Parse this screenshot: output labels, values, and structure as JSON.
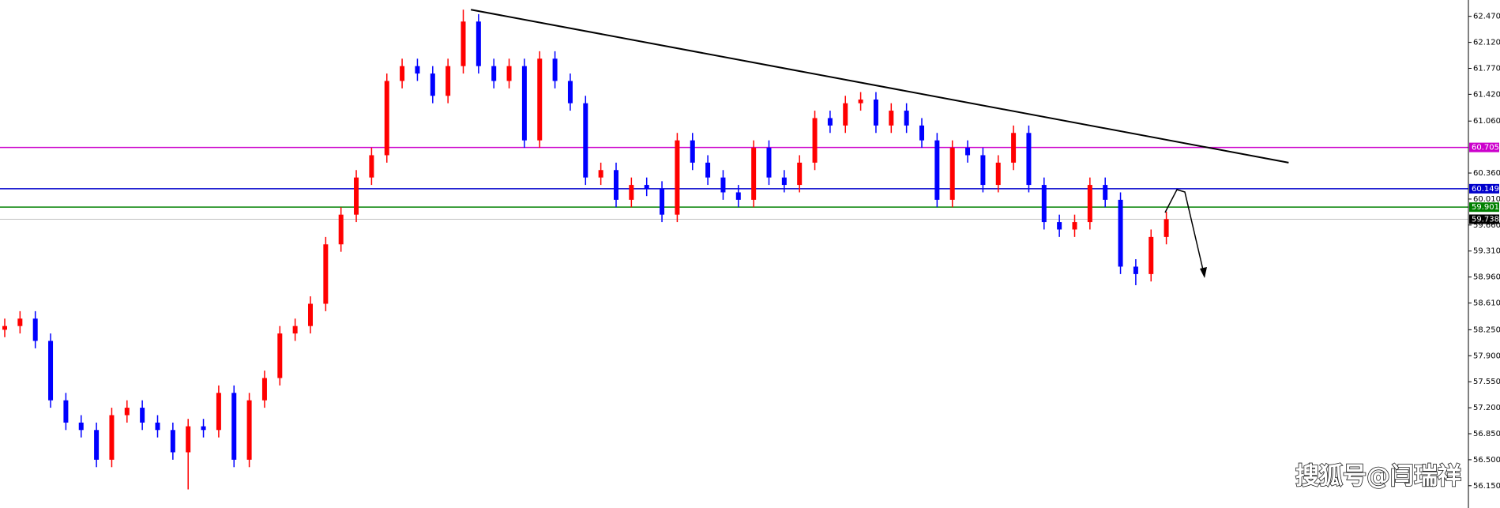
{
  "chart_data": {
    "type": "candlestick",
    "watermark": "搜狐号@闫瑞祥",
    "up_color": "#ff0000",
    "down_color": "#0000ff",
    "open": [
      58.25,
      58.3,
      58.4,
      58.1,
      57.3,
      57.0,
      56.9,
      56.5,
      57.1,
      57.2,
      57.0,
      56.9,
      56.6,
      56.95,
      56.9,
      57.4,
      56.5,
      57.3,
      57.6,
      58.2,
      58.3,
      58.6,
      59.4,
      59.8,
      60.3,
      60.6,
      61.6,
      61.8,
      61.7,
      61.4,
      61.8,
      62.4,
      61.8,
      61.6,
      61.8,
      60.8,
      61.9,
      61.6,
      61.3,
      60.3,
      60.4,
      60.0,
      60.2,
      60.15,
      59.8,
      60.8,
      60.5,
      60.3,
      60.1,
      60.0,
      60.7,
      60.3,
      60.2,
      60.5,
      61.1,
      61.0,
      61.3,
      61.35,
      61.0,
      61.2,
      61.0,
      60.8,
      60.0,
      60.7,
      60.6,
      60.2,
      60.5,
      60.9,
      60.2,
      59.7,
      59.6,
      59.7,
      60.2,
      60.0,
      59.1,
      59.0,
      59.5
    ],
    "high": [
      58.4,
      58.5,
      58.5,
      58.2,
      57.4,
      57.1,
      57.0,
      57.2,
      57.3,
      57.3,
      57.1,
      57.0,
      57.05,
      57.05,
      57.5,
      57.5,
      57.4,
      57.7,
      58.3,
      58.4,
      58.7,
      59.5,
      59.9,
      60.4,
      60.7,
      61.7,
      61.9,
      61.9,
      61.8,
      61.9,
      62.56,
      62.5,
      61.9,
      61.9,
      61.9,
      62.0,
      62.0,
      61.7,
      61.4,
      60.5,
      60.5,
      60.3,
      60.3,
      60.25,
      60.9,
      60.9,
      60.6,
      60.4,
      60.2,
      60.8,
      60.8,
      60.4,
      60.6,
      61.2,
      61.2,
      61.4,
      61.45,
      61.45,
      61.3,
      61.3,
      61.1,
      60.9,
      60.8,
      60.8,
      60.7,
      60.6,
      61.0,
      61.0,
      60.3,
      59.8,
      59.8,
      60.3,
      60.3,
      60.1,
      59.2,
      59.6,
      59.84
    ],
    "low": [
      58.15,
      58.2,
      58.0,
      57.2,
      56.9,
      56.8,
      56.4,
      56.4,
      57.0,
      56.9,
      56.8,
      56.5,
      56.1,
      56.8,
      56.8,
      56.4,
      56.4,
      57.2,
      57.5,
      58.1,
      58.2,
      58.5,
      59.3,
      59.7,
      60.2,
      60.5,
      61.5,
      61.6,
      61.3,
      61.3,
      61.7,
      61.7,
      61.5,
      61.5,
      60.7,
      60.7,
      61.5,
      61.2,
      60.2,
      60.2,
      59.9,
      59.9,
      60.05,
      59.7,
      59.7,
      60.4,
      60.2,
      60.0,
      59.9,
      59.9,
      60.2,
      60.1,
      60.1,
      60.4,
      60.9,
      60.9,
      61.2,
      60.9,
      60.9,
      60.9,
      60.7,
      59.9,
      59.9,
      60.5,
      60.1,
      60.1,
      60.4,
      60.1,
      59.6,
      59.5,
      59.5,
      59.6,
      59.9,
      59.0,
      58.85,
      58.9,
      59.4
    ],
    "close": [
      58.3,
      58.4,
      58.1,
      57.3,
      57.0,
      56.9,
      56.5,
      57.1,
      57.2,
      57.0,
      56.9,
      56.6,
      56.95,
      56.9,
      57.4,
      56.5,
      57.3,
      57.6,
      58.2,
      58.3,
      58.6,
      59.4,
      59.8,
      60.3,
      60.6,
      61.6,
      61.8,
      61.7,
      61.4,
      61.8,
      62.4,
      61.8,
      61.6,
      61.8,
      60.8,
      61.9,
      61.6,
      61.3,
      60.3,
      60.4,
      60.0,
      60.2,
      60.15,
      59.8,
      60.8,
      60.5,
      60.3,
      60.1,
      60.0,
      60.7,
      60.3,
      60.2,
      60.5,
      61.1,
      61.0,
      61.3,
      61.35,
      61.0,
      61.2,
      61.0,
      60.8,
      60.0,
      60.7,
      60.6,
      60.2,
      60.5,
      60.9,
      60.2,
      59.7,
      59.6,
      59.7,
      60.2,
      60.0,
      59.1,
      59.0,
      59.5,
      59.74
    ],
    "ylim": [
      55.85,
      62.69
    ],
    "yticks": [
      {
        "value": 62.47,
        "label": "62.470"
      },
      {
        "value": 62.12,
        "label": "62.120"
      },
      {
        "value": 61.77,
        "label": "61.770"
      },
      {
        "value": 61.42,
        "label": "61.420"
      },
      {
        "value": 61.06,
        "label": "61.060"
      },
      {
        "value": 60.36,
        "label": "60.360"
      },
      {
        "value": 60.01,
        "label": "60.010"
      },
      {
        "value": 59.66,
        "label": "59.660"
      },
      {
        "value": 59.31,
        "label": "59.310"
      },
      {
        "value": 58.96,
        "label": "58.960"
      },
      {
        "value": 58.61,
        "label": "58.610"
      },
      {
        "value": 58.25,
        "label": "58.250"
      },
      {
        "value": 57.9,
        "label": "57.900"
      },
      {
        "value": 57.55,
        "label": "57.550"
      },
      {
        "value": 57.2,
        "label": "57.200"
      },
      {
        "value": 56.85,
        "label": "56.850"
      },
      {
        "value": 56.5,
        "label": "56.500"
      },
      {
        "value": 56.15,
        "label": "56.150"
      }
    ],
    "levels": [
      {
        "value": 60.705,
        "label": "60.705",
        "color": "#cc00cc"
      },
      {
        "value": 60.149,
        "label": "60.149",
        "color": "#0000cc"
      },
      {
        "value": 59.901,
        "label": "59.901",
        "color": "#008000"
      },
      {
        "value": 59.738,
        "label": "59.738",
        "color": "#000000"
      }
    ],
    "trendline": {
      "x": [
        30.5,
        84
      ],
      "y": [
        62.56,
        60.5
      ]
    }
  }
}
